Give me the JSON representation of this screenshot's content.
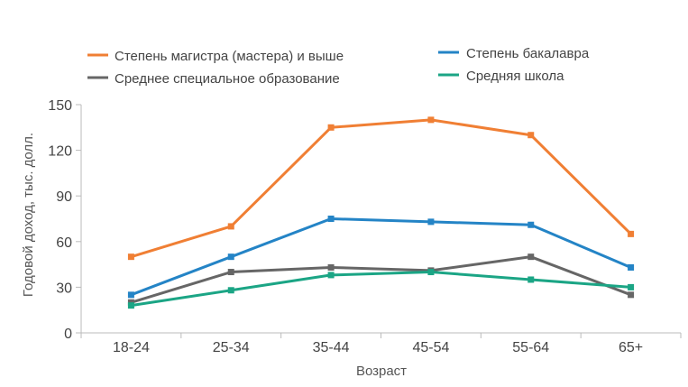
{
  "chart_data": {
    "type": "line",
    "xlabel": "Возраст",
    "ylabel": "Годовой доход, тыс. долл.",
    "categories": [
      "18-24",
      "25-34",
      "35-44",
      "45-54",
      "55-64",
      "65+"
    ],
    "yticks": [
      0,
      30,
      60,
      90,
      120,
      150
    ],
    "ylim": [
      0,
      150
    ],
    "grid": false,
    "legend_position": "top",
    "series": [
      {
        "name": "Степень магистра (мастера) и выше",
        "color": "#f07f34",
        "values": [
          50,
          70,
          135,
          140,
          130,
          65
        ]
      },
      {
        "name": "Степень бакалавра",
        "color": "#2484c6",
        "values": [
          25,
          50,
          75,
          73,
          71,
          43
        ]
      },
      {
        "name": "Среднее специальное образование",
        "color": "#666666",
        "values": [
          20,
          40,
          43,
          41,
          50,
          25
        ]
      },
      {
        "name": "Средняя школа",
        "color": "#1ba585",
        "values": [
          18,
          28,
          38,
          40,
          35,
          30
        ]
      }
    ]
  }
}
